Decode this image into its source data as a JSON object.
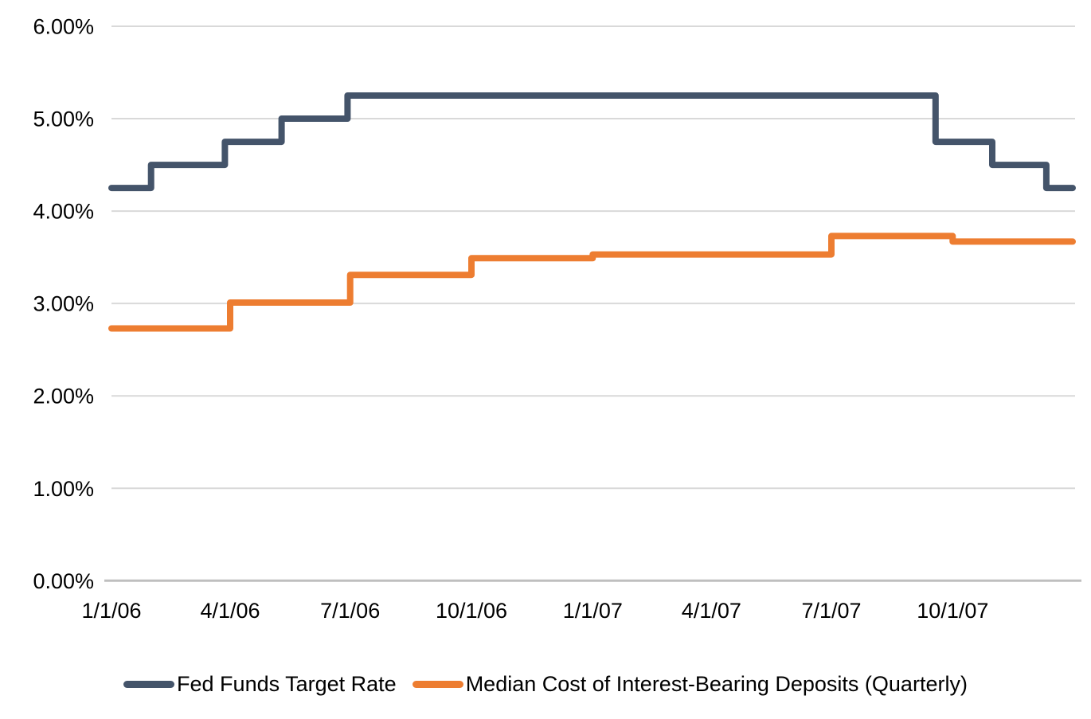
{
  "chart_data": {
    "type": "line",
    "title": "",
    "grid": "horizontal",
    "legend_position": "bottom-center",
    "x_axis": {
      "tick_labels": [
        "1/1/06",
        "4/1/06",
        "7/1/06",
        "10/1/06",
        "1/1/07",
        "4/1/07",
        "7/1/07",
        "10/1/07"
      ],
      "range": [
        "1/1/06",
        "12/31/07"
      ]
    },
    "y_axis": {
      "tick_labels": [
        "0.00%",
        "1.00%",
        "2.00%",
        "3.00%",
        "4.00%",
        "5.00%",
        "6.00%"
      ],
      "min": 0,
      "max": 6,
      "unit": "percent"
    },
    "series": [
      {
        "name": "Fed Funds Target Rate",
        "color": "#44546A",
        "line_style": "step-after",
        "points": [
          [
            "1/1/06",
            4.25
          ],
          [
            "1/31/06",
            4.5
          ],
          [
            "3/28/06",
            4.75
          ],
          [
            "5/10/06",
            5.0
          ],
          [
            "6/29/06",
            5.25
          ],
          [
            "9/18/07",
            4.75
          ],
          [
            "10/31/07",
            4.5
          ],
          [
            "12/11/07",
            4.25
          ],
          [
            "12/31/07",
            4.25
          ]
        ]
      },
      {
        "name": "Median Cost of Interest-Bearing Deposits (Quarterly)",
        "color": "#ED7D31",
        "line_style": "step-after",
        "points": [
          [
            "1/1/06",
            2.73
          ],
          [
            "4/1/06",
            3.01
          ],
          [
            "7/1/06",
            3.31
          ],
          [
            "10/1/06",
            3.49
          ],
          [
            "1/1/07",
            3.53
          ],
          [
            "4/1/07",
            3.53
          ],
          [
            "7/1/07",
            3.73
          ],
          [
            "10/1/07",
            3.67
          ],
          [
            "12/31/07",
            3.67
          ]
        ]
      }
    ]
  },
  "legend": {
    "items": [
      {
        "label": "Fed Funds Target Rate",
        "color": "#44546A"
      },
      {
        "label": "Median Cost of Interest-Bearing Deposits (Quarterly)",
        "color": "#ED7D31"
      }
    ]
  },
  "colors": {
    "background": "#FFFFFF",
    "gridline": "#D9D9D9",
    "axis_line": "#BFBFBF",
    "text": "#000000"
  }
}
